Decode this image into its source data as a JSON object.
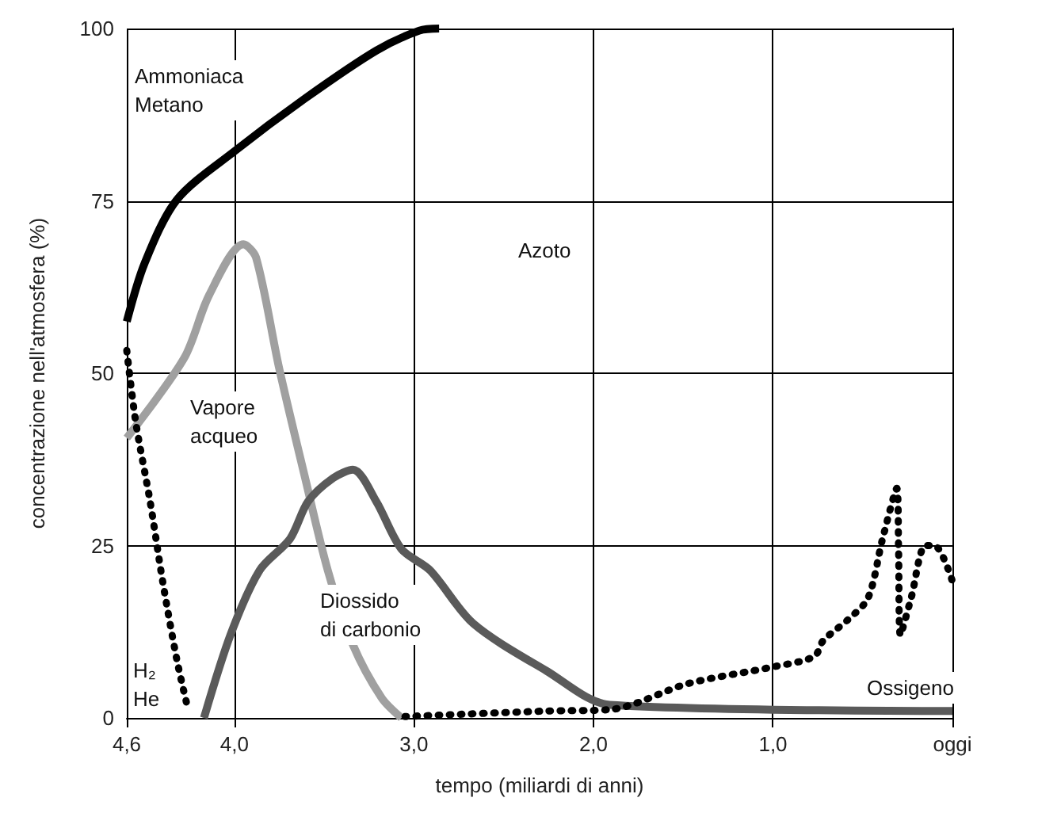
{
  "chart_data": {
    "type": "line",
    "xlabel": "tempo (miliardi di anni)",
    "ylabel": "concentrazione nell'atmosfera (%)",
    "xlim": [
      4.6,
      0
    ],
    "xticks": [
      {
        "value": 4.6,
        "label": "4,6"
      },
      {
        "value": 4,
        "label": "4,0"
      },
      {
        "value": 3,
        "label": "3,0"
      },
      {
        "value": 2,
        "label": "2,0"
      },
      {
        "value": 1,
        "label": "1,0"
      },
      {
        "value": 0,
        "label": "oggi"
      }
    ],
    "ylim": [
      0,
      100
    ],
    "yticks": [
      0,
      25,
      50,
      75,
      100
    ],
    "grid": true,
    "marker": "none",
    "series": [
      {
        "color": "#000000",
        "line_style": "solid",
        "x": [
          4.6,
          4.5,
          4.32,
          4.0,
          3.61,
          3.21,
          2.97,
          2.86
        ],
        "values": [
          57.5,
          66,
          75.2,
          82.2,
          89.8,
          96.8,
          99.7,
          100
        ]
      },
      {
        "color": "#a0a0a0",
        "line_style": "solid",
        "x": [
          4.6,
          4.28,
          4.14,
          3.95,
          3.88,
          3.75,
          3.61,
          3.48,
          3.34,
          3.18,
          3.07
        ],
        "values": [
          40.6,
          52.2,
          61.4,
          68.7,
          66.8,
          50.6,
          35.2,
          21.4,
          10.6,
          2.9,
          0
        ]
      },
      {
        "color": "#5a5a5a",
        "line_style": "solid",
        "x": [
          4.17,
          4.02,
          3.86,
          3.69,
          3.59,
          3.45,
          3.34,
          3.21,
          3.07,
          2.91,
          2.67,
          2.26,
          1.91,
          0
        ],
        "values": [
          0,
          12.2,
          21.4,
          26,
          31.4,
          34.8,
          36,
          31.4,
          24.5,
          21.4,
          13.7,
          6.8,
          1.9,
          1
        ]
      },
      {
        "color": "#000000",
        "line_style": "dotted",
        "x": [
          4.6,
          4.55,
          4.47,
          4.4,
          4.32,
          4.26
        ],
        "values": [
          53.3,
          42.9,
          31.4,
          19.8,
          8.3,
          1.4
        ]
      },
      {
        "color": "#000000",
        "line_style": "dotted",
        "x": [
          3.05,
          2.26,
          1.91,
          1.47,
          1.0,
          0.77,
          0.72,
          0.58,
          0.47,
          0.39,
          0.31,
          0.3,
          0.29,
          0.23,
          0.15,
          0.1,
          0
        ],
        "values": [
          0.2,
          1,
          1.2,
          5,
          7.4,
          8.9,
          11.2,
          14.3,
          17.4,
          25.9,
          33.3,
          24.4,
          12,
          17.4,
          25,
          25,
          19.8
        ]
      }
    ],
    "annotations": [
      "Ammoniaca\nMetano",
      "Azoto",
      "Vapore\nacqueo",
      "Diossido\ndi carbonio",
      "H₂\nHe",
      "Ossigeno"
    ]
  }
}
